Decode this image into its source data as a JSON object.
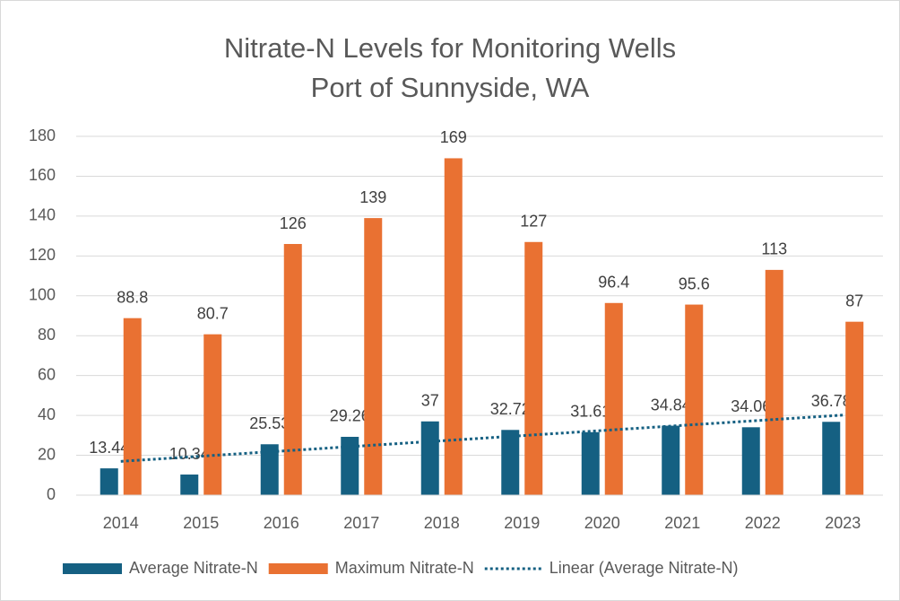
{
  "chart_data": {
    "type": "bar",
    "title": [
      "Nitrate-N Levels for Monitoring Wells",
      "Port of Sunnyside, WA"
    ],
    "categories": [
      "2014",
      "2015",
      "2016",
      "2017",
      "2018",
      "2019",
      "2020",
      "2021",
      "2022",
      "2023"
    ],
    "series": [
      {
        "name": "Average Nitrate-N",
        "color": "#156082",
        "values": [
          13.44,
          10.34,
          25.53,
          29.26,
          37,
          32.72,
          31.61,
          34.84,
          34.06,
          36.78
        ]
      },
      {
        "name": "Maximum Nitrate-N",
        "color": "#e97132",
        "values": [
          88.8,
          80.7,
          126,
          139,
          169,
          127,
          96.4,
          95.6,
          113,
          87
        ]
      }
    ],
    "trendline": {
      "name": "Linear (Average Nitrate-N)",
      "type": "linear",
      "series": 0,
      "color": "#156082"
    },
    "ylim": [
      0,
      180
    ],
    "yticks": [
      0,
      20,
      40,
      60,
      80,
      100,
      120,
      140,
      160,
      180
    ],
    "grid": true,
    "legend": "bottom",
    "data_labels": true
  }
}
